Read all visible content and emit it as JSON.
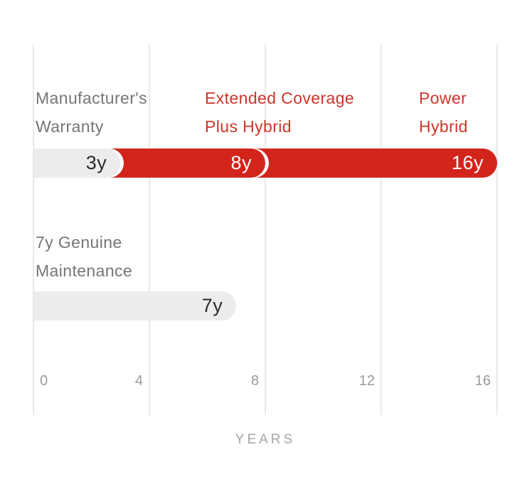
{
  "chart_data": {
    "type": "bar",
    "orientation": "horizontal",
    "xlabel": "YEARS",
    "xlim": [
      0,
      16
    ],
    "grid": "vertical",
    "legend": "none",
    "x_ticks": [
      {
        "value": 0,
        "label": "0"
      },
      {
        "value": 4,
        "label": "4"
      },
      {
        "value": 8,
        "label": "8"
      },
      {
        "value": 12,
        "label": "12"
      },
      {
        "value": 16,
        "label": "16"
      }
    ],
    "rows": [
      {
        "name": "warranty-coverage",
        "labels": [
          {
            "lines": [
              "Manufacturer's",
              "Warranty"
            ],
            "color_role": "gray"
          },
          {
            "lines": [
              "Extended Coverage",
              "Plus Hybrid"
            ],
            "color_role": "red"
          },
          {
            "lines": [
              "Power",
              "Hybrid"
            ],
            "color_role": "red"
          }
        ],
        "segments": [
          {
            "name": "manufacturers-warranty",
            "value_years": 3,
            "value_label": "3y",
            "style": "gray"
          },
          {
            "name": "extended-coverage-plus-hybrid",
            "value_years": 8,
            "value_label": "8y",
            "style": "red"
          },
          {
            "name": "power-hybrid",
            "value_years": 16,
            "value_label": "16y",
            "style": "red"
          }
        ]
      },
      {
        "name": "genuine-maintenance",
        "labels": [
          {
            "lines": [
              "7y Genuine",
              "Maintenance"
            ],
            "color_role": "gray"
          }
        ],
        "segments": [
          {
            "name": "genuine-maintenance",
            "value_years": 7,
            "value_label": "7y",
            "style": "gray"
          }
        ]
      }
    ],
    "colors": {
      "bar_red": "#d3241c",
      "bar_gray": "#ececec",
      "text_red": "#ce352b",
      "text_gray": "#757575",
      "bar_text_dark": "#2b2b2b",
      "bar_text_light": "#ffffff",
      "tick_text": "#9a9a9a",
      "axis_label_text": "#a5a5a5",
      "gridline": "#e8e8e8"
    }
  }
}
